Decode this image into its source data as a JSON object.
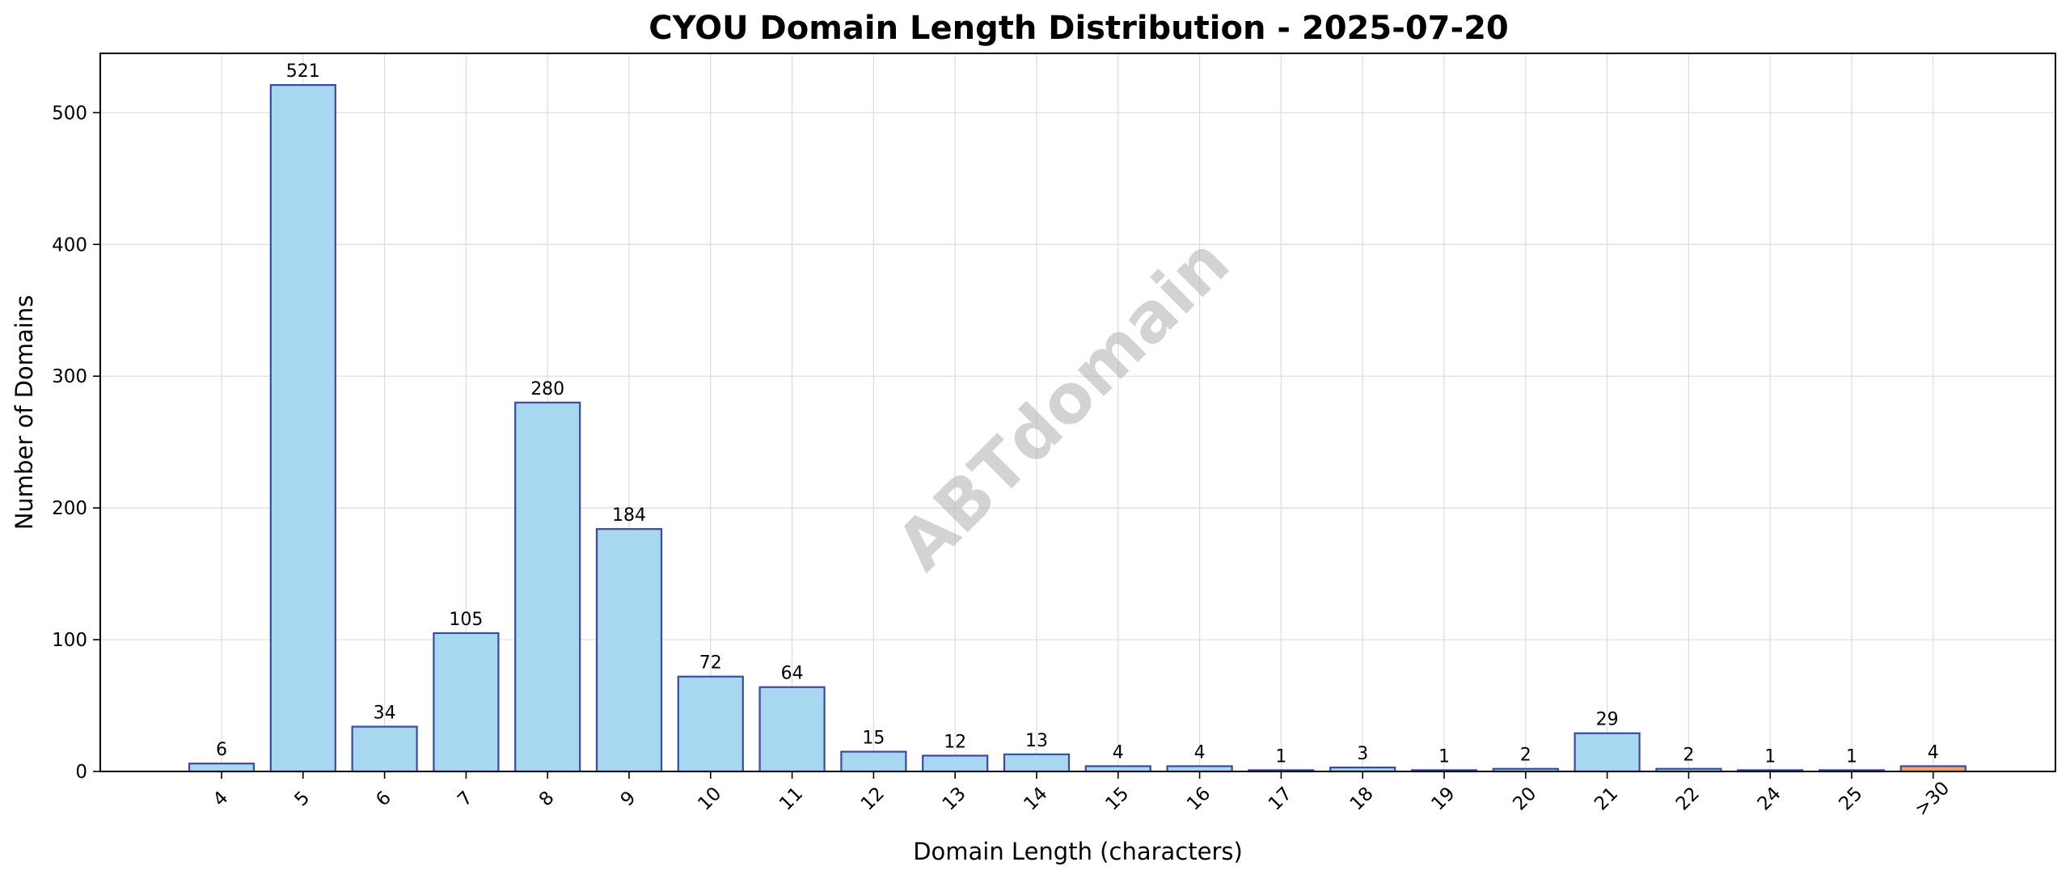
{
  "chart_data": {
    "type": "bar",
    "title": "CYOU Domain Length Distribution - 2025-07-20",
    "xlabel": "Domain Length (characters)",
    "ylabel": "Number of Domains",
    "watermark": "ABTdomain",
    "categories": [
      "4",
      "5",
      "6",
      "7",
      "8",
      "9",
      "10",
      "11",
      "12",
      "13",
      "14",
      "15",
      "16",
      "17",
      "18",
      "19",
      "20",
      "21",
      "22",
      "24",
      "25",
      ">30"
    ],
    "values": [
      6,
      521,
      34,
      105,
      280,
      184,
      72,
      64,
      15,
      12,
      13,
      4,
      4,
      1,
      3,
      1,
      2,
      29,
      2,
      1,
      1,
      4
    ],
    "ylim": [
      0,
      545
    ],
    "yticks": [
      0,
      100,
      200,
      300,
      400,
      500
    ],
    "grid": true,
    "colors": {
      "bar": "#a8d8ef",
      "bar_edge": "#3a4aa0",
      "overflow_bar": "#f5a55a",
      "overflow_edge": "#3a4aa0"
    }
  }
}
